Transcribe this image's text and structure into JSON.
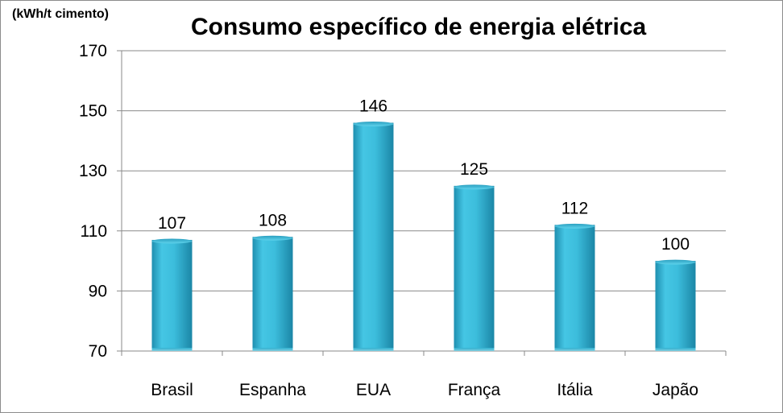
{
  "chart_data": {
    "type": "bar",
    "title": "Consumo específico de energia elétrica",
    "unit_label": "(kWh/t cimento)",
    "categories": [
      "Brasil",
      "Espanha",
      "EUA",
      "França",
      "Itália",
      "Japão"
    ],
    "values": [
      107,
      108,
      146,
      125,
      112,
      100
    ],
    "yticks": [
      70,
      90,
      110,
      130,
      150,
      170
    ],
    "ylim": [
      70,
      170
    ],
    "grid": true,
    "legend": "none",
    "bar_color": "#3ab8d8"
  }
}
